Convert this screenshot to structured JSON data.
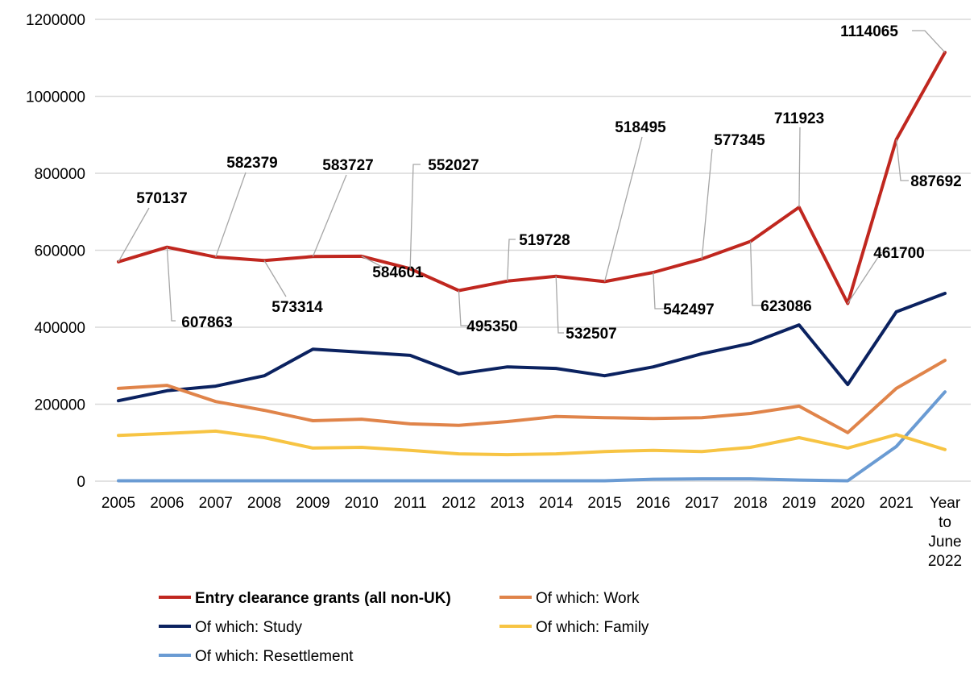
{
  "chart_data": {
    "type": "line",
    "title": "",
    "xlabel": "",
    "ylabel": "",
    "ylim": [
      0,
      1200000
    ],
    "yticks": [
      0,
      200000,
      400000,
      600000,
      800000,
      1000000,
      1200000
    ],
    "grid": "horizontal",
    "legend_position": "bottom",
    "categories": [
      "2005",
      "2006",
      "2007",
      "2008",
      "2009",
      "2010",
      "2011",
      "2012",
      "2013",
      "2014",
      "2015",
      "2016",
      "2017",
      "2018",
      "2019",
      "2020",
      "2021",
      "Year to June 2022"
    ],
    "series": [
      {
        "name": "Entry clearance grants (all non-UK)",
        "color": "#C0271F",
        "bold": true,
        "labeled": true,
        "values": [
          570137,
          607863,
          582379,
          573314,
          583727,
          584601,
          552027,
          495350,
          519728,
          532507,
          518495,
          542497,
          577345,
          623086,
          711923,
          461700,
          887692,
          1114065
        ]
      },
      {
        "name": "Of which: Work",
        "color": "#E0844A",
        "values": [
          241000,
          249000,
          207000,
          184000,
          157000,
          161000,
          149000,
          145000,
          155000,
          168000,
          165000,
          163000,
          165000,
          176000,
          195000,
          126000,
          241000,
          314000
        ]
      },
      {
        "name": "Of which: Study",
        "color": "#0B2260",
        "values": [
          209000,
          235000,
          247000,
          274000,
          343000,
          335000,
          327000,
          279000,
          297000,
          293000,
          274000,
          297000,
          331000,
          358000,
          406000,
          251000,
          440000,
          488000
        ]
      },
      {
        "name": "Of which: Family",
        "color": "#F7C443",
        "values": [
          119000,
          124000,
          130000,
          113000,
          86000,
          88000,
          80000,
          71000,
          69000,
          71000,
          77000,
          80000,
          77000,
          88000,
          113000,
          86000,
          121000,
          82000
        ]
      },
      {
        "name": "Of which: Resettlement",
        "color": "#6A9BD3",
        "values": [
          1000,
          1000,
          1000,
          1000,
          1000,
          1000,
          1000,
          1000,
          1000,
          1000,
          1000,
          5000,
          6000,
          6000,
          3000,
          1000,
          90000,
          232000
        ]
      }
    ]
  }
}
